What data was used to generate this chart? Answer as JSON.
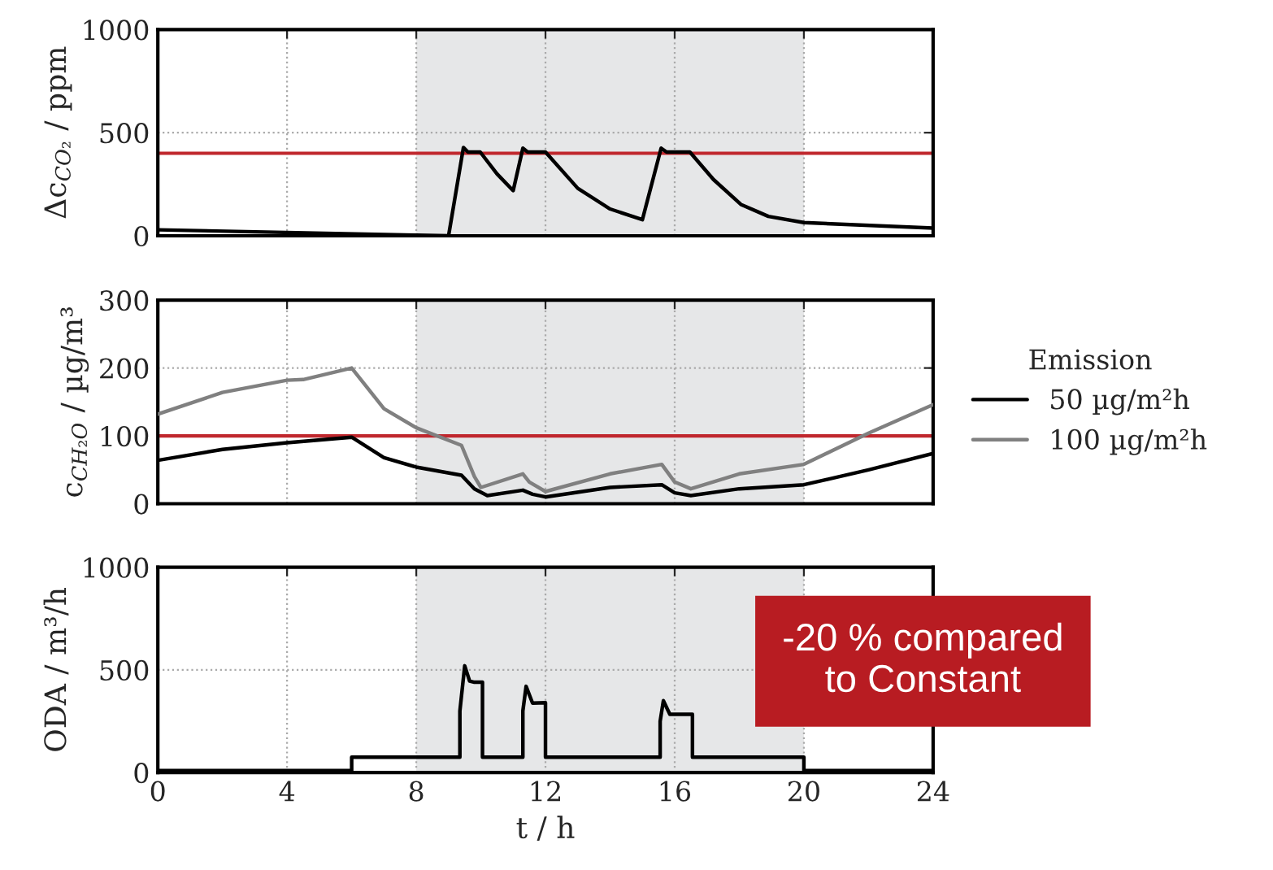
{
  "chart_data": [
    {
      "type": "line",
      "ylabel": "Δc$_{CO₂}$ / ppm",
      "xlim": [
        0,
        24
      ],
      "xticks": [
        0,
        4,
        8,
        12,
        16,
        20,
        24
      ],
      "ylim": [
        0,
        1000
      ],
      "yticks": [
        0,
        500,
        1000
      ],
      "grid": true,
      "tick_labels": "y",
      "series": [
        {
          "color": "#000000",
          "x": [
            0,
            8,
            9.0,
            9.46,
            9.6,
            9.98,
            10.5,
            11.0,
            11.3,
            11.45,
            12.0,
            13.0,
            14.0,
            15.0,
            15.58,
            15.75,
            16.47,
            17.2,
            18.05,
            18.9,
            20,
            24
          ],
          "values": [
            29,
            3,
            0,
            428,
            406,
            406,
            300,
            219,
            425,
            406,
            406,
            230,
            130,
            78,
            425,
            406,
            406,
            273,
            152,
            94,
            64,
            37
          ]
        }
      ],
      "ref_lines": [
        {
          "axis": "y",
          "value": 400,
          "color": "#c0272d"
        }
      ],
      "bands": [
        {
          "axis": "x",
          "from": 8,
          "to": 20,
          "color": "#e6e7e8"
        }
      ]
    },
    {
      "type": "line",
      "ylabel": "c$_{CH₂O}$ / µg/m³",
      "xlim": [
        0,
        24
      ],
      "xticks": [
        0,
        4,
        8,
        12,
        16,
        20,
        24
      ],
      "ylim": [
        0,
        300
      ],
      "yticks": [
        0,
        100,
        200,
        300
      ],
      "grid": true,
      "tick_labels": "y",
      "legend": "right",
      "legend_title": "Emission",
      "series": [
        {
          "name": "50 µg/m²h",
          "color": "#000000",
          "x": [
            0,
            2,
            4,
            6,
            7,
            8,
            9.4,
            9.8,
            10.2,
            11.3,
            11.6,
            12,
            14,
            15.6,
            16,
            16.5,
            18,
            20,
            22,
            24
          ],
          "values": [
            64,
            80,
            90,
            98,
            68,
            54,
            42,
            22,
            12,
            20,
            14,
            10,
            24,
            28,
            16,
            12,
            22,
            28,
            50,
            74
          ]
        },
        {
          "name": "100 µg/m²h",
          "color": "#808080",
          "x": [
            0,
            2,
            4,
            4.5,
            6,
            7,
            8,
            9.4,
            9.8,
            10,
            11.3,
            11.5,
            12,
            14,
            15.6,
            16,
            16.5,
            18,
            20,
            22,
            24
          ],
          "values": [
            132,
            164,
            182,
            183,
            200,
            140,
            112,
            86,
            40,
            24,
            44,
            32,
            18,
            44,
            58,
            32,
            22,
            44,
            58,
            104,
            146
          ]
        }
      ],
      "ref_lines": [
        {
          "axis": "y",
          "value": 100,
          "color": "#c0272d"
        }
      ],
      "bands": [
        {
          "axis": "x",
          "from": 8,
          "to": 20,
          "color": "#e6e7e8"
        }
      ]
    },
    {
      "type": "line",
      "ylabel": "ODA / m³/h",
      "xlabel": "t / h",
      "xlim": [
        0,
        24
      ],
      "xticks": [
        0,
        4,
        8,
        12,
        16,
        20,
        24
      ],
      "ylim": [
        0,
        1000
      ],
      "yticks": [
        0,
        500,
        1000
      ],
      "grid": true,
      "series": [
        {
          "color": "#000000",
          "x": [
            0,
            6,
            6,
            9.35,
            9.35,
            9.5,
            9.65,
            9.8,
            10.05,
            10.05,
            11.3,
            11.3,
            11.4,
            11.6,
            12.0,
            12.0,
            15.55,
            15.55,
            15.65,
            15.85,
            16.55,
            16.55,
            20,
            20,
            24
          ],
          "values": [
            10,
            10,
            75,
            75,
            300,
            520,
            446,
            440,
            440,
            75,
            75,
            300,
            420,
            338,
            340,
            75,
            75,
            250,
            350,
            284,
            284,
            75,
            75,
            10,
            10
          ]
        }
      ],
      "bands": [
        {
          "axis": "x",
          "from": 8,
          "to": 20,
          "color": "#e6e7e8"
        }
      ],
      "annotations": [
        "-20 % compared\nto Constant"
      ]
    }
  ]
}
